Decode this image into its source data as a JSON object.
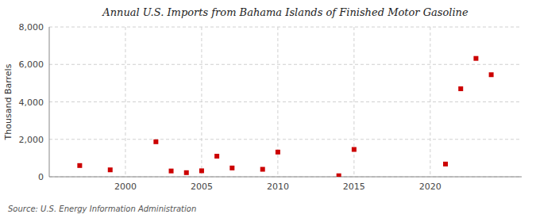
{
  "chart_data": {
    "type": "scatter",
    "title": "Annual U.S. Imports from Bahama Islands of Finished Motor Gasoline",
    "y_label": "Thousand Barrels",
    "source": "Source: U.S. Energy Information Administration",
    "x": [
      1997,
      1999,
      2002,
      2003,
      2004,
      2005,
      2006,
      2007,
      2009,
      2010,
      2014,
      2015,
      2021,
      2022,
      2023,
      2024
    ],
    "values": [
      600,
      370,
      1870,
      310,
      220,
      320,
      1100,
      470,
      400,
      1320,
      55,
      1460,
      680,
      4700,
      6320,
      5450
    ],
    "color": "#cc0000",
    "marker": "square",
    "xlim": [
      1995,
      2026
    ],
    "ylim": [
      0,
      8000
    ],
    "xticks": [
      2000,
      2005,
      2010,
      2015,
      2020
    ],
    "yticks": [
      0,
      {
        "value": 2000,
        "label": "2,000"
      },
      {
        "value": 4000,
        "label": "4,000"
      },
      {
        "value": 6000,
        "label": "6,000"
      },
      {
        "value": 8000,
        "label": "8,000"
      }
    ],
    "grid": true
  }
}
